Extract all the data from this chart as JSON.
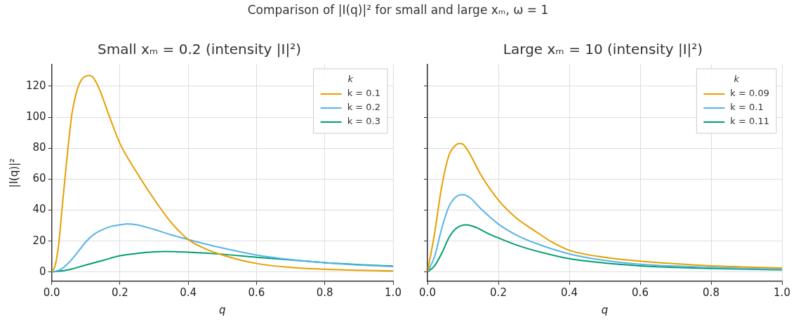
{
  "chart_data": [
    {
      "type": "line",
      "title": "Small xₘ = 0.2 (intensity |I|²)",
      "xlabel": "q",
      "ylabel": "|I(q)|²",
      "legend_title": "k",
      "legend": "top right",
      "grid": true,
      "annotations": [
        "Comparison of |I(q)|² for small and large xₘ, ω = 1"
      ],
      "xlim": [
        0,
        1
      ],
      "xticks": [
        {
          "value": 0,
          "label": "0.0"
        },
        {
          "value": 0.2,
          "label": "0.2"
        },
        {
          "value": 0.4,
          "label": "0.4"
        },
        {
          "value": 0.6,
          "label": "0.6"
        },
        {
          "value": 0.8,
          "label": "0.8"
        },
        {
          "value": 1,
          "label": "1.0"
        }
      ],
      "ylim": [
        -6,
        134
      ],
      "yticks": [
        0,
        20,
        40,
        60,
        80,
        100,
        120
      ],
      "series": [
        {
          "name": "k = 0.1",
          "color": "#e69f00",
          "x": [
            0,
            0.01,
            0.02,
            0.03,
            0.04,
            0.05,
            0.06,
            0.07,
            0.08,
            0.09,
            0.1,
            0.11,
            0.12,
            0.14,
            0.16,
            0.18,
            0.2,
            0.25,
            0.3,
            0.35,
            0.4,
            0.45,
            0.5,
            0.6,
            0.7,
            0.8,
            0.9,
            1.0
          ],
          "values": [
            0,
            4,
            17,
            40,
            63,
            85,
            103,
            114,
            121,
            125,
            126.5,
            127,
            126,
            118,
            106,
            94,
            83,
            64,
            47,
            32,
            21,
            15,
            11,
            5.5,
            3,
            1.8,
            1.1,
            0.7
          ]
        },
        {
          "name": "k = 0.2",
          "color": "#56b4e9",
          "x": [
            0,
            0.025,
            0.05,
            0.075,
            0.1,
            0.125,
            0.15,
            0.175,
            0.2,
            0.22,
            0.25,
            0.3,
            0.35,
            0.4,
            0.5,
            0.6,
            0.7,
            0.8,
            0.9,
            1.0
          ],
          "values": [
            0,
            1.5,
            6,
            12.5,
            19.5,
            24.5,
            27.5,
            29.5,
            30.5,
            31,
            30.5,
            27.5,
            24,
            21,
            15.5,
            11,
            8,
            6,
            4.5,
            3.5
          ]
        },
        {
          "name": "k = 0.3",
          "color": "#009e73",
          "x": [
            0,
            0.05,
            0.1,
            0.15,
            0.2,
            0.25,
            0.3,
            0.33,
            0.4,
            0.5,
            0.6,
            0.7,
            0.8,
            0.9,
            1.0
          ],
          "values": [
            0,
            1.5,
            4.5,
            7.5,
            10.5,
            12,
            13,
            13.2,
            12.8,
            11.5,
            9.5,
            7.8,
            6,
            4.8,
            3.8
          ]
        }
      ]
    },
    {
      "type": "line",
      "title": "Large xₘ = 10 (intensity |I|²)",
      "xlabel": "q",
      "legend_title": "k",
      "legend": "top right",
      "grid": true,
      "tick_labels": "x",
      "xlim": [
        0,
        1
      ],
      "xticks": [
        {
          "value": 0,
          "label": "0.0"
        },
        {
          "value": 0.2,
          "label": "0.2"
        },
        {
          "value": 0.4,
          "label": "0.4"
        },
        {
          "value": 0.6,
          "label": "0.6"
        },
        {
          "value": 0.8,
          "label": "0.8"
        },
        {
          "value": 1,
          "label": "1.0"
        }
      ],
      "ylim": [
        -6,
        134
      ],
      "yticks": [
        0,
        20,
        40,
        60,
        80,
        100,
        120
      ],
      "series": [
        {
          "name": "k = 0.09",
          "color": "#e69f00",
          "x": [
            0,
            0.02,
            0.04,
            0.06,
            0.08,
            0.09,
            0.1,
            0.12,
            0.15,
            0.2,
            0.25,
            0.3,
            0.35,
            0.4,
            0.5,
            0.6,
            0.7,
            0.8,
            0.9,
            1.0
          ],
          "values": [
            0,
            25,
            55,
            75,
            82,
            83,
            82.5,
            76,
            63,
            46.5,
            35,
            27,
            19.5,
            14,
            9.5,
            7,
            5.3,
            4,
            3.2,
            2.6
          ]
        },
        {
          "name": "k = 0.1",
          "color": "#56b4e9",
          "x": [
            0,
            0.02,
            0.04,
            0.06,
            0.08,
            0.1,
            0.12,
            0.15,
            0.2,
            0.25,
            0.3,
            0.4,
            0.5,
            0.6,
            0.7,
            0.8,
            0.9,
            1.0
          ],
          "values": [
            0,
            10,
            28,
            42,
            48.5,
            50,
            48,
            41,
            31,
            24,
            19,
            11.7,
            7.5,
            5,
            3.8,
            3,
            2.3,
            1.8
          ]
        },
        {
          "name": "k = 0.11",
          "color": "#009e73",
          "x": [
            0,
            0.02,
            0.04,
            0.06,
            0.08,
            0.11,
            0.14,
            0.17,
            0.2,
            0.25,
            0.3,
            0.4,
            0.5,
            0.6,
            0.7,
            0.8,
            0.9,
            1.0
          ],
          "values": [
            0,
            4,
            12,
            22,
            28,
            30.5,
            28.5,
            25,
            22,
            17.5,
            14,
            8.6,
            5.8,
            4,
            3,
            2.3,
            1.8,
            1.4
          ]
        }
      ]
    }
  ]
}
